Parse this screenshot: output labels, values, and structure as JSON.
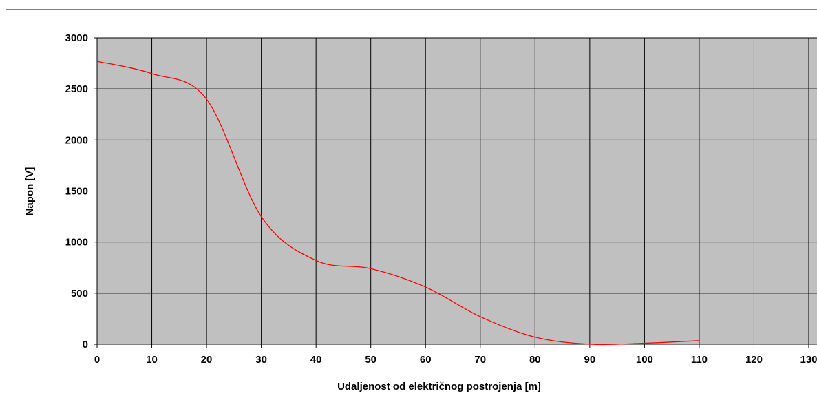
{
  "chart_data": {
    "type": "line",
    "title": "",
    "xlabel": "Udaljenost od električnog postrojenja [m]",
    "ylabel": "Napon [V]",
    "xlim": [
      0,
      130
    ],
    "ylim": [
      0,
      3000
    ],
    "x_ticks": [
      "0",
      "10",
      "20",
      "30",
      "40",
      "50",
      "60",
      "70",
      "80",
      "90",
      "100",
      "110",
      "120",
      "130"
    ],
    "y_ticks": [
      "0",
      "500",
      "1000",
      "1500",
      "2000",
      "2500",
      "3000"
    ],
    "grid": true,
    "legend": "none",
    "plot_background": "#c0c0c0",
    "series": [
      {
        "color": "#ff0000",
        "x": [
          0,
          10,
          20,
          30,
          40,
          50,
          60,
          70,
          80,
          90,
          100,
          110
        ],
        "y": [
          2770,
          2650,
          2400,
          1250,
          820,
          740,
          560,
          270,
          70,
          0,
          10,
          35
        ]
      }
    ]
  }
}
